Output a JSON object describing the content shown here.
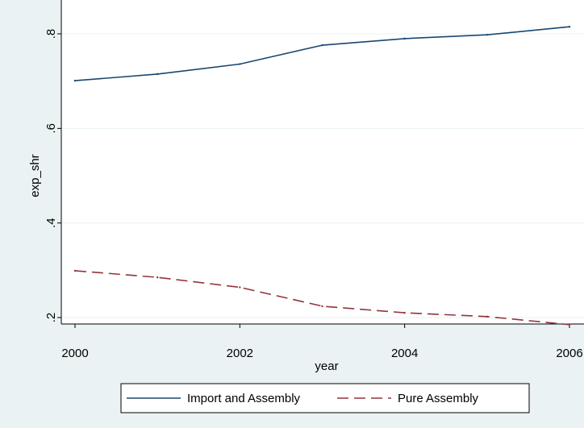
{
  "chart_data": {
    "type": "line",
    "title": "",
    "xlabel": "year",
    "ylabel": "exp_shr",
    "xlim": [
      2000,
      2006
    ],
    "ylim": [
      0.2,
      0.8
    ],
    "x_ticks": [
      2000,
      2002,
      2004,
      2006
    ],
    "x_tick_labels": [
      "2000",
      "2002",
      "2004",
      "2006"
    ],
    "y_ticks": [
      0.2,
      0.4,
      0.6,
      0.8
    ],
    "y_tick_labels": [
      ".2",
      ".4",
      ".6",
      ".8"
    ],
    "grid": true,
    "legend_position": "bottom",
    "x": [
      2000,
      2001,
      2002,
      2003,
      2004,
      2005,
      2006
    ],
    "series": [
      {
        "name": "Import and Assembly",
        "color": "#1a476f",
        "dash": "solid",
        "values": [
          0.701,
          0.715,
          0.736,
          0.776,
          0.79,
          0.798,
          0.815
        ]
      },
      {
        "name": "Pure Assembly",
        "color": "#90353b",
        "dash": "dashed",
        "values": [
          0.299,
          0.285,
          0.264,
          0.224,
          0.21,
          0.202,
          0.185
        ]
      }
    ]
  }
}
